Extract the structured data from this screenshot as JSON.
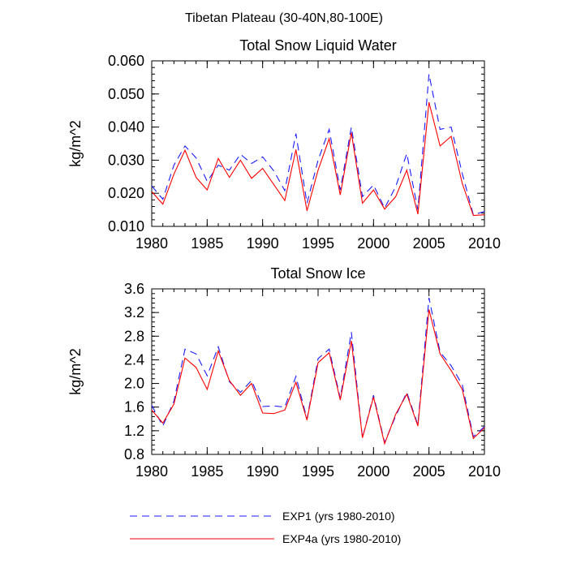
{
  "figure_title": "Tibetan Plateau (30-40N,80-100E)",
  "colors": {
    "exp1": "#1a1aff",
    "exp4a": "#ff0000",
    "axis": "#000000"
  },
  "legend": [
    {
      "label": "EXP1 (yrs 1980-2010)",
      "color": "#1a1aff",
      "dash": true
    },
    {
      "label": "EXP4a (yrs 1980-2010)",
      "color": "#ff0000",
      "dash": false
    }
  ],
  "chart_data": [
    {
      "type": "line",
      "title": "Total Snow Liquid Water",
      "xlabel": "",
      "ylabel": "kg/m^2",
      "xlim": [
        1980,
        2010
      ],
      "ylim": [
        0.01,
        0.06
      ],
      "yticks": [
        0.01,
        0.02,
        0.03,
        0.04,
        0.05,
        0.06
      ],
      "ytick_labels": [
        "0.010",
        "0.020",
        "0.030",
        "0.040",
        "0.050",
        "0.060"
      ],
      "xticks": [
        1980,
        1985,
        1990,
        1995,
        2000,
        2005,
        2010
      ],
      "xtick_labels": [
        "1980",
        "1985",
        "1990",
        "1995",
        "2000",
        "2005",
        "2010"
      ],
      "x": [
        1980,
        1981,
        1982,
        1983,
        1984,
        1985,
        1986,
        1987,
        1988,
        1989,
        1990,
        1991,
        1992,
        1993,
        1994,
        1995,
        1996,
        1997,
        1998,
        1999,
        2000,
        2001,
        2002,
        2003,
        2004,
        2005,
        2006,
        2007,
        2008,
        2009,
        2010
      ],
      "series": [
        {
          "name": "EXP1",
          "values": [
            0.0222,
            0.0182,
            0.0285,
            0.0343,
            0.0307,
            0.0236,
            0.0285,
            0.027,
            0.0318,
            0.029,
            0.031,
            0.0268,
            0.0208,
            0.038,
            0.017,
            0.03,
            0.0393,
            0.021,
            0.04,
            0.019,
            0.0225,
            0.0155,
            0.022,
            0.032,
            0.015,
            0.056,
            0.0393,
            0.04,
            0.026,
            0.0135,
            0.0145
          ]
        },
        {
          "name": "EXP4a",
          "values": [
            0.0205,
            0.0167,
            0.0258,
            0.033,
            0.0248,
            0.021,
            0.0305,
            0.0248,
            0.03,
            0.0245,
            0.0275,
            0.0227,
            0.0178,
            0.0332,
            0.0147,
            0.027,
            0.0365,
            0.0195,
            0.0383,
            0.017,
            0.021,
            0.0152,
            0.019,
            0.027,
            0.0137,
            0.0475,
            0.0343,
            0.0372,
            0.023,
            0.0133,
            0.0135
          ]
        }
      ]
    },
    {
      "type": "line",
      "title": "Total Snow Ice",
      "xlabel": "",
      "ylabel": "kg/m^2",
      "xlim": [
        1980,
        2010
      ],
      "ylim": [
        0.8,
        3.6
      ],
      "yticks": [
        0.8,
        1.2,
        1.6,
        2.0,
        2.4,
        2.8,
        3.2,
        3.6
      ],
      "ytick_labels": [
        "0.8",
        "1.2",
        "1.6",
        "2.0",
        "2.4",
        "2.8",
        "3.2",
        "3.6"
      ],
      "xticks": [
        1980,
        1985,
        1990,
        1995,
        2000,
        2005,
        2010
      ],
      "xtick_labels": [
        "1980",
        "1985",
        "1990",
        "1995",
        "2000",
        "2005",
        "2010"
      ],
      "x": [
        1980,
        1981,
        1982,
        1983,
        1984,
        1985,
        1986,
        1987,
        1988,
        1989,
        1990,
        1991,
        1992,
        1993,
        1994,
        1995,
        1996,
        1997,
        1998,
        1999,
        2000,
        2001,
        2002,
        2003,
        2004,
        2005,
        2006,
        2007,
        2008,
        2009,
        2010
      ],
      "series": [
        {
          "name": "EXP1",
          "values": [
            1.63,
            1.28,
            1.7,
            2.58,
            2.5,
            2.13,
            2.62,
            2.03,
            1.85,
            2.05,
            1.61,
            1.62,
            1.6,
            2.12,
            1.4,
            2.42,
            2.58,
            1.75,
            2.87,
            1.08,
            1.8,
            1.0,
            1.45,
            1.85,
            1.3,
            3.45,
            2.53,
            2.3,
            1.98,
            1.1,
            1.27
          ]
        },
        {
          "name": "EXP4a",
          "values": [
            1.55,
            1.33,
            1.65,
            2.43,
            2.27,
            1.9,
            2.55,
            2.05,
            1.8,
            2.0,
            1.5,
            1.49,
            1.55,
            2.02,
            1.38,
            2.35,
            2.52,
            1.72,
            2.72,
            1.08,
            1.77,
            0.98,
            1.48,
            1.82,
            1.28,
            3.25,
            2.5,
            2.22,
            1.9,
            1.07,
            1.25
          ]
        }
      ]
    }
  ]
}
